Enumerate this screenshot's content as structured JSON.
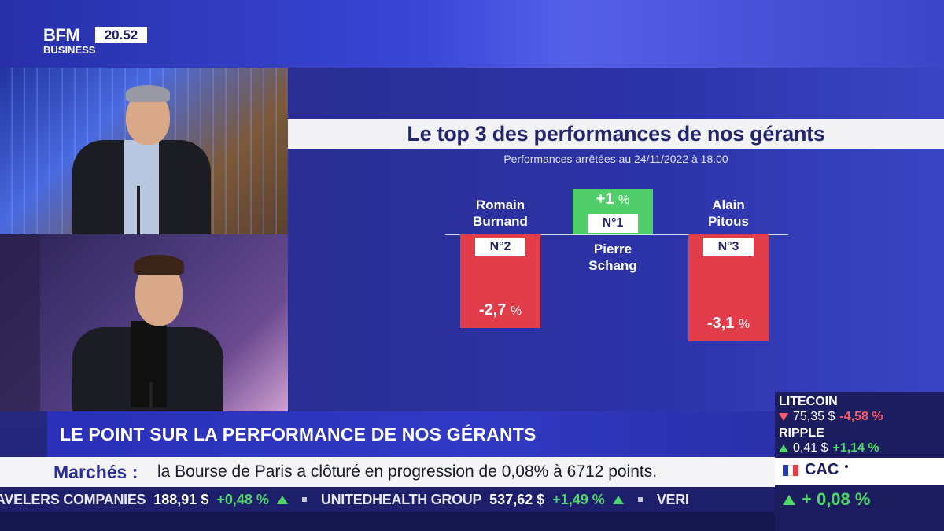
{
  "header": {
    "logo_top": "BFM",
    "logo_bottom": "BUSINESS",
    "clock": "20.52"
  },
  "chart": {
    "title": "Le top 3 des performances de nos gérants",
    "subtitle": "Performances arrêtées au 24/11/2022 à 18.00"
  },
  "chart_data": {
    "type": "bar",
    "categories": [
      "Romain Burnand",
      "Pierre Schang",
      "Alain Pitous"
    ],
    "values": [
      -2.7,
      1,
      -3.1
    ],
    "ranks": [
      "N°2",
      "N°1",
      "N°3"
    ],
    "labels": [
      "-2,7",
      "+1",
      "-3,1"
    ],
    "unit": "%",
    "title": "Le top 3 des performances de nos gérants",
    "subtitle": "Performances arrêtées au 24/11/2022 à 18.00",
    "colors": {
      "negative": "#e23d4a",
      "positive": "#4fce6a"
    }
  },
  "names": {
    "n2_first": "Romain",
    "n2_last": "Burnand",
    "n1_first": "Pierre",
    "n1_last": "Schang",
    "n3_first": "Alain",
    "n3_last": "Pitous"
  },
  "lower_third": {
    "title": "LE POINT SUR LA PERFORMANCE DE NOS GÉRANTS"
  },
  "news": {
    "label": "Marchés :",
    "text": "la Bourse de Paris a clôturé en progression de 0,08% à 6712 points."
  },
  "ticker": {
    "items": [
      {
        "name": "AVELERS COMPANIES",
        "price": "188,91 $",
        "change": "+0,48 %"
      },
      {
        "name": "UNITEDHEALTH GROUP",
        "price": "537,62 $",
        "change": "+1,49 %"
      },
      {
        "name": "VERI",
        "price": "",
        "change": ""
      }
    ]
  },
  "market": {
    "litecoin": {
      "name": "LITECOIN",
      "price": "75,35 $",
      "change": "-4,58 %"
    },
    "ripple": {
      "name": "RIPPLE",
      "price": "0,41 $",
      "change": "+1,14 %"
    },
    "cac": {
      "name": "CAC",
      "change": "+ 0,08 %"
    }
  }
}
